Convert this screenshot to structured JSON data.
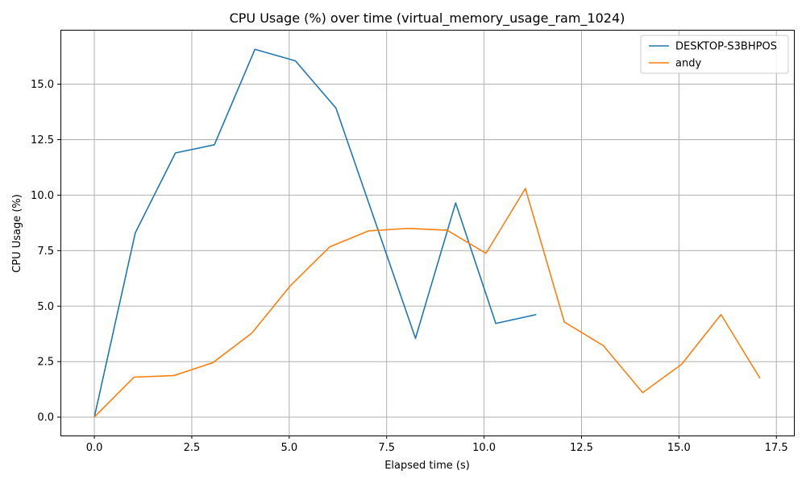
{
  "chart_data": {
    "type": "line",
    "title": "CPU Usage (%) over time (virtual_memory_usage_ram_1024)",
    "xlabel": "Elapsed time (s)",
    "ylabel": "CPU Usage (%)",
    "xlim": [
      -0.87,
      17.95
    ],
    "ylim": [
      -0.83,
      17.45
    ],
    "xticks": [
      0.0,
      2.5,
      5.0,
      7.5,
      10.0,
      12.5,
      15.0,
      17.5
    ],
    "xtick_labels": [
      "0.0",
      "2.5",
      "5.0",
      "7.5",
      "10.0",
      "12.5",
      "15.0",
      "17.5"
    ],
    "yticks": [
      0.0,
      2.5,
      5.0,
      7.5,
      10.0,
      12.5,
      15.0
    ],
    "ytick_labels": [
      "0.0",
      "2.5",
      "5.0",
      "7.5",
      "10.0",
      "12.5",
      "15.0"
    ],
    "grid": true,
    "legend": "top-right",
    "series": [
      {
        "name": "DESKTOP-S3BHPOS",
        "color": "#1f77b4",
        "x": [
          0.0,
          1.05,
          2.08,
          3.08,
          4.12,
          5.16,
          6.2,
          8.24,
          9.27,
          10.3,
          11.34
        ],
        "y": [
          0.0,
          8.3,
          11.9,
          12.27,
          16.57,
          16.05,
          13.92,
          3.55,
          9.65,
          4.22,
          4.62
        ]
      },
      {
        "name": "andy",
        "color": "#ff7f0e",
        "x": [
          0.0,
          1.02,
          2.04,
          3.04,
          4.04,
          5.03,
          6.04,
          7.04,
          8.04,
          9.05,
          10.05,
          11.06,
          12.06,
          13.06,
          14.07,
          15.07,
          16.08,
          17.08
        ],
        "y": [
          0.0,
          1.8,
          1.87,
          2.45,
          3.78,
          5.92,
          7.67,
          8.39,
          8.5,
          8.42,
          7.38,
          10.3,
          4.28,
          3.22,
          1.1,
          2.38,
          4.62,
          1.75
        ]
      }
    ]
  }
}
